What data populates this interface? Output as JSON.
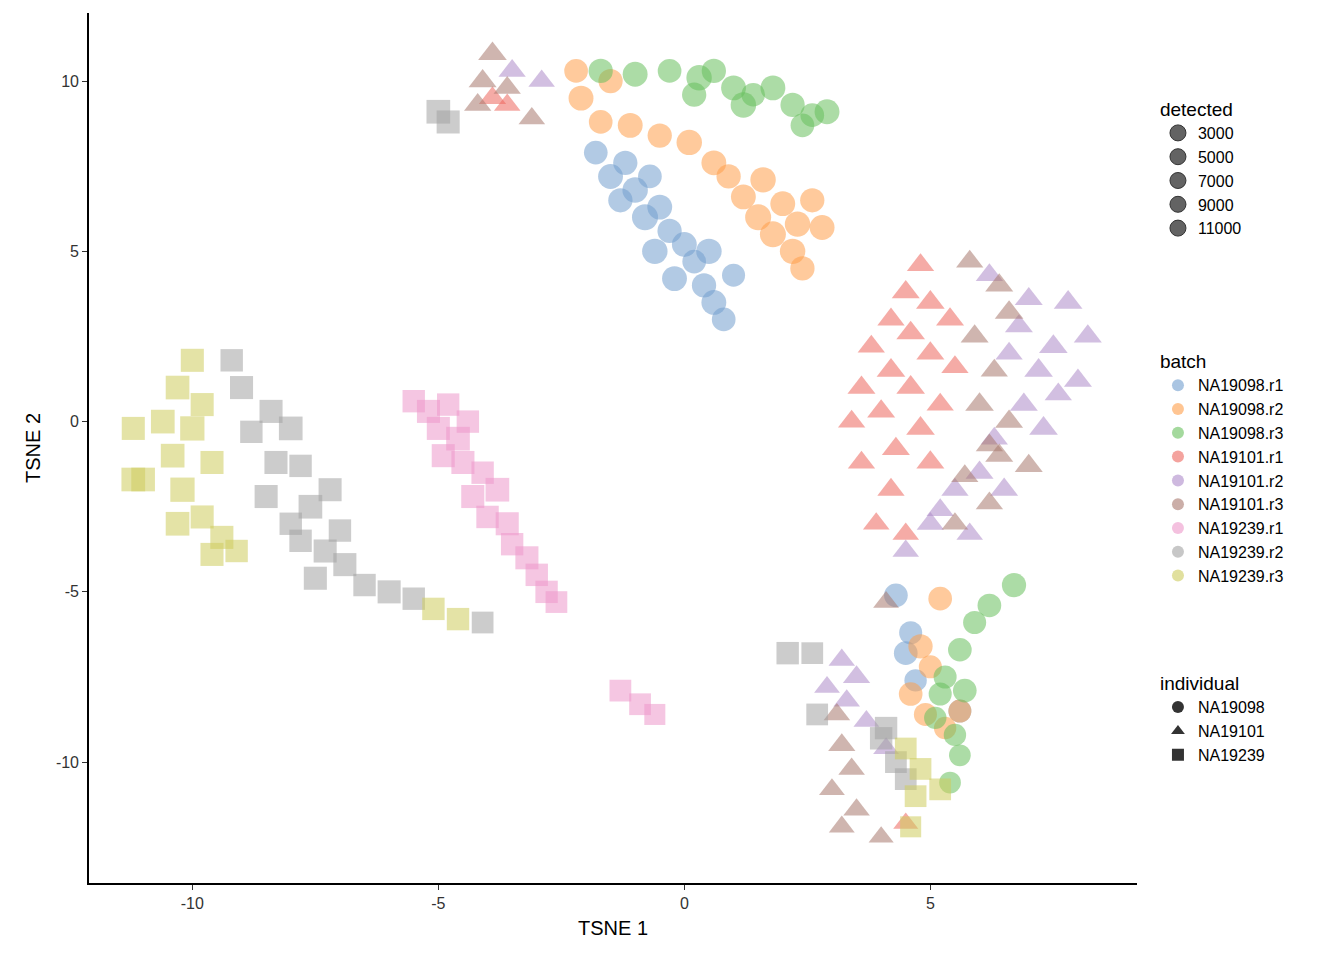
{
  "chart_data": {
    "type": "scatter",
    "x_label": "TSNE 1",
    "y_label": "TSNE 2",
    "xlim": [
      -12.1,
      9.2
    ],
    "ylim": [
      -13.55,
      12.0
    ],
    "xticks": [
      -10,
      -5,
      0,
      5
    ],
    "yticks": [
      -10,
      -5,
      0,
      5,
      10
    ],
    "grid": false,
    "size_legend": {
      "title": "detected",
      "values": [
        3000,
        5000,
        7000,
        9000,
        11000
      ]
    },
    "color_legend_title": "batch",
    "shape_legend": {
      "title": "individual",
      "items": [
        {
          "name": "NA19098",
          "marker": "circle"
        },
        {
          "name": "NA19101",
          "marker": "triangle-up"
        },
        {
          "name": "NA19239",
          "marker": "square"
        }
      ]
    },
    "series": [
      {
        "name": "NA19098.r1",
        "individual": "NA19098",
        "color": "#729ECE",
        "x": [
          -1.8,
          -1.5,
          -1.2,
          -1.0,
          -0.7,
          -0.5,
          -0.8,
          -0.3,
          0.0,
          -0.6,
          0.2,
          -0.2,
          0.4,
          0.6,
          0.8,
          1.0,
          0.5,
          -1.3,
          4.3,
          4.6,
          4.5,
          4.7,
          5.6
        ],
        "y": [
          7.9,
          7.2,
          7.6,
          6.8,
          7.2,
          6.3,
          6.0,
          5.6,
          5.2,
          5.0,
          4.7,
          4.2,
          4.0,
          3.5,
          3.0,
          4.3,
          5.0,
          6.5,
          -5.1,
          -6.2,
          -6.8,
          -7.6,
          -8.5
        ],
        "detected": [
          8000,
          9000,
          8500,
          9500,
          8000,
          9000,
          10000,
          8500,
          9000,
          9500,
          8000,
          9000,
          8500,
          9000,
          8000,
          7500,
          9500,
          8500,
          8000,
          7500,
          8000,
          7000,
          7500
        ]
      },
      {
        "name": "NA19098.r2",
        "individual": "NA19098",
        "color": "#FF9E4A",
        "x": [
          -2.2,
          -1.5,
          -2.1,
          -1.7,
          -1.1,
          -0.5,
          0.1,
          0.6,
          0.9,
          1.2,
          1.6,
          1.5,
          2.0,
          2.3,
          2.6,
          2.8,
          2.2,
          2.4,
          1.8,
          5.2,
          4.8,
          5.0,
          4.6,
          4.9,
          5.3,
          5.6
        ],
        "y": [
          10.3,
          10.0,
          9.5,
          8.8,
          8.7,
          8.4,
          8.2,
          7.6,
          7.2,
          6.6,
          7.1,
          6.0,
          6.4,
          5.8,
          6.5,
          5.7,
          5.0,
          4.5,
          5.5,
          -5.2,
          -6.6,
          -7.2,
          -8.0,
          -8.6,
          -9.0,
          -8.5
        ],
        "detected": [
          8000,
          8500,
          9000,
          8000,
          9000,
          8500,
          9500,
          9000,
          8500,
          9000,
          9500,
          10000,
          9000,
          9500,
          8500,
          9000,
          9500,
          8500,
          10000,
          8000,
          8500,
          7500,
          8000,
          7500,
          7000,
          7500
        ]
      },
      {
        "name": "NA19098.r3",
        "individual": "NA19098",
        "color": "#67BF5C",
        "x": [
          -1.7,
          -1.0,
          -0.3,
          0.3,
          0.6,
          1.0,
          1.4,
          1.8,
          2.2,
          2.6,
          2.9,
          1.2,
          0.2,
          2.4,
          6.7,
          6.2,
          5.9,
          5.6,
          5.3,
          5.7,
          5.1,
          5.5,
          5.6,
          5.4,
          5.2
        ],
        "y": [
          10.3,
          10.2,
          10.3,
          10.1,
          10.3,
          9.8,
          9.6,
          9.8,
          9.3,
          9.0,
          9.1,
          9.3,
          9.6,
          8.7,
          -4.8,
          -5.4,
          -5.9,
          -6.7,
          -7.5,
          -7.9,
          -8.7,
          -9.2,
          -9.8,
          -10.6,
          -8.0
        ],
        "detected": [
          8500,
          9000,
          8000,
          9500,
          8500,
          9000,
          8000,
          9000,
          8500,
          8000,
          9000,
          9500,
          8500,
          8000,
          8500,
          8000,
          7500,
          8000,
          7500,
          8000,
          7000,
          7000,
          6500,
          6500,
          7500
        ]
      },
      {
        "name": "NA19101.r1",
        "individual": "NA19101",
        "color": "#ED665D",
        "x": [
          4.8,
          4.5,
          5.0,
          4.2,
          5.4,
          4.6,
          3.8,
          5.0,
          4.2,
          5.5,
          3.6,
          4.6,
          5.2,
          4.0,
          3.4,
          4.8,
          4.3,
          3.6,
          5.0,
          4.2,
          3.9,
          4.5,
          -3.9,
          -3.6,
          4.5
        ],
        "y": [
          4.6,
          3.8,
          3.5,
          3.0,
          3.0,
          2.6,
          2.2,
          2.0,
          1.5,
          1.6,
          1.0,
          1.0,
          0.5,
          0.3,
          0.0,
          -0.2,
          -0.8,
          -1.2,
          -1.2,
          -2.0,
          -3.0,
          -3.3,
          9.5,
          9.3,
          -11.8
        ],
        "detected": [
          8000,
          8500,
          9000,
          8000,
          8500,
          9000,
          8000,
          8500,
          9000,
          8000,
          8500,
          9000,
          8000,
          8500,
          8000,
          9000,
          8500,
          8000,
          8500,
          8000,
          7500,
          7500,
          8000,
          7500,
          6500
        ]
      },
      {
        "name": "NA19101.r2",
        "individual": "NA19101",
        "color": "#AD8BC9",
        "x": [
          6.2,
          7.0,
          7.8,
          6.8,
          7.5,
          8.2,
          6.6,
          7.2,
          8.0,
          7.6,
          6.9,
          7.3,
          6.3,
          6.0,
          5.5,
          6.5,
          5.2,
          5.8,
          4.5,
          5.0,
          -3.5,
          -2.9,
          3.2,
          3.5,
          2.9,
          3.3,
          3.7,
          4.1
        ],
        "y": [
          4.3,
          3.6,
          3.5,
          2.8,
          2.2,
          2.5,
          2.0,
          1.5,
          1.2,
          0.8,
          0.5,
          -0.2,
          -0.5,
          -1.5,
          -2.0,
          -2.0,
          -2.6,
          -3.3,
          -3.8,
          -3.0,
          10.3,
          10.0,
          -7.0,
          -7.5,
          -7.8,
          -8.2,
          -8.8,
          -9.6
        ],
        "detected": [
          8000,
          8500,
          9000,
          8500,
          9000,
          8500,
          8000,
          9000,
          8500,
          8000,
          8500,
          9000,
          8000,
          8500,
          8000,
          8500,
          8000,
          7500,
          7500,
          8000,
          8000,
          7500,
          7500,
          8000,
          7000,
          7500,
          7000,
          7000
        ]
      },
      {
        "name": "NA19101.r3",
        "individual": "NA19101",
        "color": "#A8786E",
        "x": [
          -3.9,
          -4.1,
          -3.6,
          -3.1,
          -4.2,
          5.8,
          6.4,
          6.6,
          5.9,
          6.3,
          6.0,
          6.6,
          6.2,
          7.0,
          5.7,
          6.2,
          5.5,
          6.4,
          4.1,
          3.1,
          3.2,
          3.4,
          3.0,
          3.5,
          3.2,
          4.0
        ],
        "y": [
          10.8,
          10.0,
          9.8,
          8.9,
          9.3,
          4.7,
          4.0,
          3.2,
          2.5,
          1.5,
          0.5,
          0.0,
          -0.7,
          -1.3,
          -1.6,
          -2.4,
          -3.0,
          -1.0,
          -5.3,
          -8.6,
          -9.5,
          -10.2,
          -10.8,
          -11.4,
          -11.9,
          -12.2
        ],
        "detected": [
          9000,
          8500,
          8000,
          7500,
          8000,
          8000,
          8500,
          9000,
          8500,
          8000,
          9000,
          8500,
          8000,
          8500,
          8000,
          8000,
          7500,
          8500,
          7000,
          7500,
          8000,
          7500,
          7000,
          7500,
          7000,
          6500
        ]
      },
      {
        "name": "NA19239.r1",
        "individual": "NA19239",
        "color": "#ED97CA",
        "x": [
          -5.5,
          -5.2,
          -4.8,
          -5.0,
          -4.6,
          -4.4,
          -4.5,
          -4.1,
          -4.3,
          -3.8,
          -4.0,
          -3.6,
          -3.5,
          -3.2,
          -3.0,
          -2.8,
          -2.6,
          -4.9,
          -1.3,
          -0.9,
          -0.6
        ],
        "y": [
          0.6,
          0.3,
          0.5,
          -0.2,
          -0.5,
          0.0,
          -1.2,
          -1.5,
          -2.2,
          -2.0,
          -2.8,
          -3.0,
          -3.6,
          -4.0,
          -4.5,
          -5.0,
          -5.3,
          -1.0,
          -7.9,
          -8.3,
          -8.6
        ],
        "detected": [
          7000,
          7500,
          7000,
          7500,
          8000,
          7000,
          7500,
          7000,
          7500,
          8000,
          7000,
          7500,
          7000,
          7500,
          7000,
          7000,
          6500,
          7500,
          6500,
          6500,
          6000
        ]
      },
      {
        "name": "NA19239.r2",
        "individual": "NA19239",
        "color": "#A2A2A2",
        "x": [
          -5.0,
          -4.8,
          -9.2,
          -9.0,
          -8.8,
          -8.4,
          -8.0,
          -8.3,
          -7.8,
          -8.5,
          -7.6,
          -7.2,
          -7.8,
          -7.3,
          -7.0,
          -6.9,
          -6.5,
          -6.0,
          -5.5,
          -4.1,
          -7.5,
          -8.0,
          2.1,
          2.6,
          2.7,
          4.0,
          4.3,
          4.1,
          4.5
        ],
        "y": [
          9.1,
          8.8,
          1.8,
          1.0,
          -0.3,
          0.3,
          -0.2,
          -1.2,
          -1.3,
          -2.2,
          -2.5,
          -2.0,
          -3.5,
          -3.8,
          -3.2,
          -4.2,
          -4.8,
          -5.0,
          -5.2,
          -5.9,
          -4.6,
          -3.0,
          -6.8,
          -6.8,
          -8.6,
          -9.3,
          -10.0,
          -9.0,
          -10.5
        ],
        "detected": [
          8000,
          7500,
          7000,
          7500,
          7000,
          7500,
          8000,
          7500,
          7000,
          7500,
          8000,
          7500,
          7000,
          7500,
          7000,
          7500,
          7000,
          7500,
          7000,
          6500,
          7500,
          7000,
          7000,
          6500,
          6500,
          7000,
          6500,
          7000,
          6500
        ]
      },
      {
        "name": "NA19239.r3",
        "individual": "NA19239",
        "color": "#CDCC5D",
        "x": [
          -10.0,
          -10.3,
          -9.8,
          -10.6,
          -10.0,
          -11.2,
          -10.4,
          -9.6,
          -11.0,
          -10.2,
          -9.8,
          -10.3,
          -9.4,
          -9.1,
          -9.6,
          -11.2,
          -5.1,
          -4.6,
          4.5,
          4.7,
          4.6,
          5.2,
          4.8
        ],
        "y": [
          1.8,
          1.0,
          0.5,
          0.0,
          -0.2,
          -0.2,
          -1.0,
          -1.2,
          -1.7,
          -2.0,
          -2.8,
          -3.0,
          -3.4,
          -3.8,
          -3.9,
          -1.7,
          -5.5,
          -5.8,
          -9.6,
          -11.0,
          -11.9,
          -10.8,
          -10.2
        ],
        "detected": [
          7500,
          8000,
          7500,
          8000,
          8500,
          7500,
          8000,
          7500,
          8000,
          8500,
          7500,
          8000,
          7500,
          7000,
          7500,
          8000,
          7000,
          7000,
          6500,
          6500,
          6000,
          6500,
          6500
        ]
      }
    ]
  }
}
